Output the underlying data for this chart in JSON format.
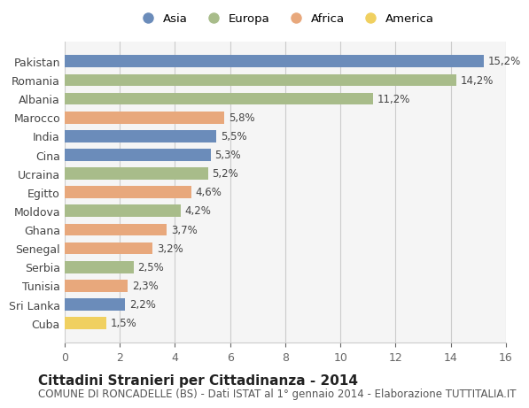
{
  "countries": [
    "Pakistan",
    "Romania",
    "Albania",
    "Marocco",
    "India",
    "Cina",
    "Ucraina",
    "Egitto",
    "Moldova",
    "Ghana",
    "Senegal",
    "Serbia",
    "Tunisia",
    "Sri Lanka",
    "Cuba"
  ],
  "values": [
    15.2,
    14.2,
    11.2,
    5.8,
    5.5,
    5.3,
    5.2,
    4.6,
    4.2,
    3.7,
    3.2,
    2.5,
    2.3,
    2.2,
    1.5
  ],
  "labels": [
    "15,2%",
    "14,2%",
    "11,2%",
    "5,8%",
    "5,5%",
    "5,3%",
    "5,2%",
    "4,6%",
    "4,2%",
    "3,7%",
    "3,2%",
    "2,5%",
    "2,3%",
    "2,2%",
    "1,5%"
  ],
  "continents": [
    "Asia",
    "Europa",
    "Europa",
    "Africa",
    "Asia",
    "Asia",
    "Europa",
    "Africa",
    "Europa",
    "Africa",
    "Africa",
    "Europa",
    "Africa",
    "Asia",
    "America"
  ],
  "colors": {
    "Asia": "#6b8cba",
    "Europa": "#a8bc8a",
    "Africa": "#e8a87c",
    "America": "#f0d060"
  },
  "legend_order": [
    "Asia",
    "Europa",
    "Africa",
    "America"
  ],
  "title": "Cittadini Stranieri per Cittadinanza - 2014",
  "subtitle": "COMUNE DI RONCADELLE (BS) - Dati ISTAT al 1° gennaio 2014 - Elaborazione TUTTITALIA.IT",
  "xlim": [
    0,
    16
  ],
  "xticks": [
    0,
    2,
    4,
    6,
    8,
    10,
    12,
    14,
    16
  ],
  "background_color": "#ffffff",
  "plot_bg_color": "#f5f5f5",
  "grid_color": "#cccccc",
  "bar_height": 0.65,
  "label_fontsize": 8.5,
  "title_fontsize": 11,
  "subtitle_fontsize": 8.5,
  "tick_fontsize": 9,
  "ylabel_fontsize": 9,
  "legend_fontsize": 9.5,
  "marker_size": 10
}
